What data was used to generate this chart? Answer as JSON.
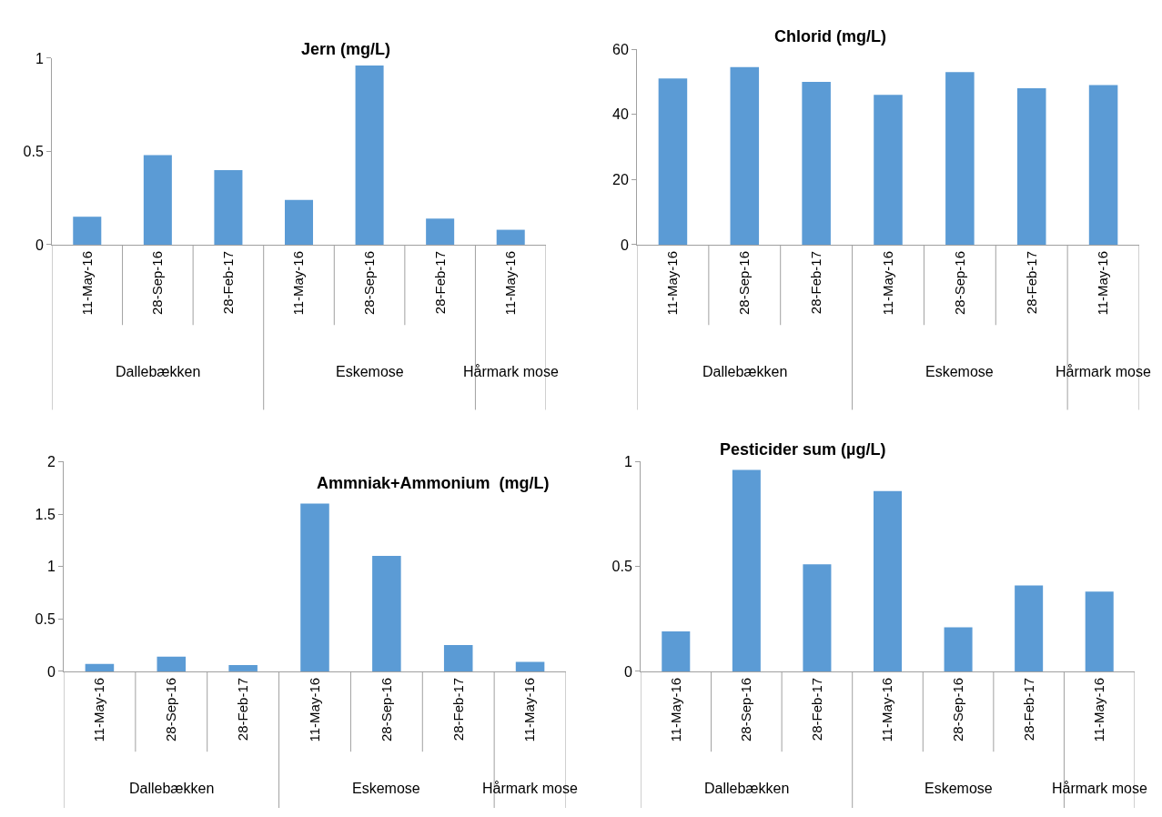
{
  "chart_data": [
    {
      "type": "bar",
      "title": "Jern (mg/L)",
      "categories": [
        "11-May-16",
        "28-Sep-16",
        "28-Feb-17",
        "11-May-16",
        "28-Sep-16",
        "28-Feb-17",
        "11-May-16"
      ],
      "values": [
        0.15,
        0.48,
        0.4,
        0.24,
        0.96,
        0.14,
        0.08
      ],
      "color": "#5b9bd5",
      "ylim": [
        0,
        1
      ],
      "yticks": [
        0,
        0.5,
        1
      ],
      "annotations": [
        "Dallebækken",
        "Eskemose",
        "Hårmark mose"
      ]
    },
    {
      "type": "bar",
      "title": "Chlorid (mg/L)",
      "categories": [
        "11-May-16",
        "28-Sep-16",
        "28-Feb-17",
        "11-May-16",
        "28-Sep-16",
        "28-Feb-17",
        "11-May-16"
      ],
      "values": [
        51,
        54.5,
        50,
        46,
        53,
        48,
        49
      ],
      "color": "#5b9bd5",
      "ylim": [
        0,
        60
      ],
      "yticks": [
        0,
        20,
        40,
        60
      ],
      "annotations": [
        "Dallebækken",
        "Eskemose",
        "Hårmark mose"
      ]
    },
    {
      "type": "bar",
      "title": "Ammniak+Ammonium  (mg/L)",
      "categories": [
        "11-May-16",
        "28-Sep-16",
        "28-Feb-17",
        "11-May-16",
        "28-Sep-16",
        "28-Feb-17",
        "11-May-16"
      ],
      "values": [
        0.07,
        0.14,
        0.06,
        1.6,
        1.1,
        0.25,
        0.09
      ],
      "color": "#5b9bd5",
      "ylim": [
        0,
        2
      ],
      "yticks": [
        0,
        0.5,
        1,
        1.5,
        2
      ],
      "annotations": [
        "Dallebækken",
        "Eskemose",
        "Hårmark mose"
      ]
    },
    {
      "type": "bar",
      "title": "Pesticider sum (µg/L)",
      "categories": [
        "11-May-16",
        "28-Sep-16",
        "28-Feb-17",
        "11-May-16",
        "28-Sep-16",
        "28-Feb-17",
        "11-May-16"
      ],
      "values": [
        0.19,
        0.96,
        0.51,
        0.86,
        0.21,
        0.41,
        0.38
      ],
      "color": "#5b9bd5",
      "ylim": [
        0,
        1
      ],
      "yticks": [
        0,
        0.5,
        1
      ],
      "annotations": [
        "Dallebækken",
        "Eskemose",
        "Hårmark mose"
      ]
    }
  ]
}
